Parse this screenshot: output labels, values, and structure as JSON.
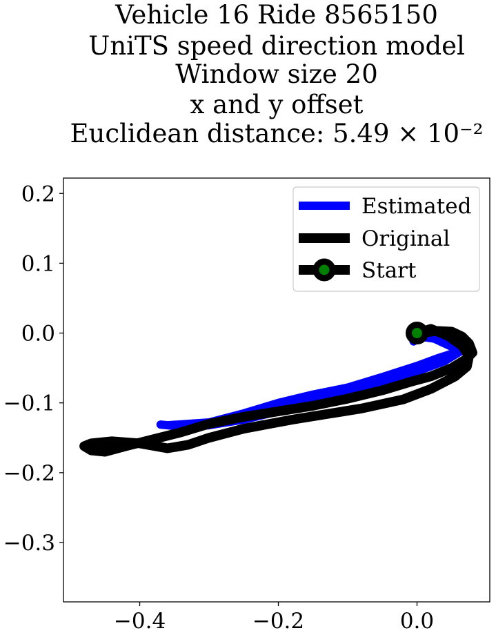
{
  "chart_data": {
    "type": "line",
    "title_lines": [
      "Vehicle 16 Ride 8565150",
      "UniTS speed direction model",
      "Window size 20",
      "x and y offset",
      "Euclidean distance: 5.49 × 10⁻²"
    ],
    "xlabel": "",
    "ylabel": "",
    "xlim": [
      -0.51,
      0.105
    ],
    "ylim": [
      -0.385,
      0.222
    ],
    "x_ticks": [
      -0.4,
      -0.2,
      0.0
    ],
    "x_tick_labels": [
      "−0.4",
      "−0.2",
      "0.0"
    ],
    "y_ticks": [
      0.2,
      0.1,
      0.0,
      -0.1,
      -0.2,
      -0.3
    ],
    "y_tick_labels": [
      "0.2",
      "0.1",
      "0.0",
      "−0.1",
      "−0.2",
      "−0.3"
    ],
    "grid": false,
    "legend_position": "top-right",
    "series": [
      {
        "name": "Estimated",
        "color": "#0000ff",
        "x": [
          0.0,
          0.01,
          0.025,
          0.04,
          0.055,
          0.065,
          0.04,
          0.0,
          -0.05,
          -0.1,
          -0.15,
          -0.2,
          -0.25,
          -0.3,
          -0.33,
          -0.35,
          -0.37,
          -0.36,
          -0.3,
          -0.25,
          -0.2,
          -0.15,
          -0.1,
          -0.05,
          0.0,
          0.03,
          0.055,
          0.058,
          0.05,
          0.04,
          0.02,
          0.005,
          -0.005
        ],
        "y": [
          -0.01,
          -0.006,
          -0.008,
          -0.015,
          -0.022,
          -0.025,
          -0.04,
          -0.055,
          -0.072,
          -0.088,
          -0.1,
          -0.112,
          -0.124,
          -0.132,
          -0.134,
          -0.133,
          -0.131,
          -0.132,
          -0.128,
          -0.115,
          -0.1,
          -0.088,
          -0.078,
          -0.063,
          -0.047,
          -0.036,
          -0.028,
          -0.022,
          -0.018,
          -0.012,
          -0.007,
          -0.005,
          -0.012
        ]
      },
      {
        "name": "Original",
        "color": "#000000",
        "x": [
          0.0,
          0.02,
          0.045,
          0.065,
          0.075,
          0.072,
          0.055,
          0.02,
          -0.02,
          -0.08,
          -0.13,
          -0.18,
          -0.25,
          -0.3,
          -0.33,
          -0.36,
          -0.4,
          -0.44,
          -0.47,
          -0.48,
          -0.47,
          -0.45,
          -0.42,
          -0.38,
          -0.34,
          -0.3,
          -0.25,
          -0.2,
          -0.15,
          -0.1,
          -0.05,
          -0.01,
          0.02,
          0.05,
          0.07,
          0.08,
          0.075,
          0.065,
          0.05,
          0.03,
          0.01,
          0.0
        ],
        "y": [
          0.0,
          0.006,
          -0.004,
          -0.018,
          -0.033,
          -0.048,
          -0.062,
          -0.08,
          -0.095,
          -0.108,
          -0.116,
          -0.124,
          -0.137,
          -0.15,
          -0.16,
          -0.165,
          -0.158,
          -0.155,
          -0.158,
          -0.162,
          -0.168,
          -0.17,
          -0.162,
          -0.152,
          -0.142,
          -0.13,
          -0.12,
          -0.112,
          -0.104,
          -0.094,
          -0.082,
          -0.07,
          -0.062,
          -0.05,
          -0.038,
          -0.028,
          -0.015,
          -0.005,
          0.002,
          0.003,
          0.001,
          0.0
        ]
      }
    ],
    "start": {
      "name": "Start",
      "x": 0.0,
      "y": 0.0,
      "outer_color": "#000000",
      "inner_color": "#008000"
    }
  }
}
